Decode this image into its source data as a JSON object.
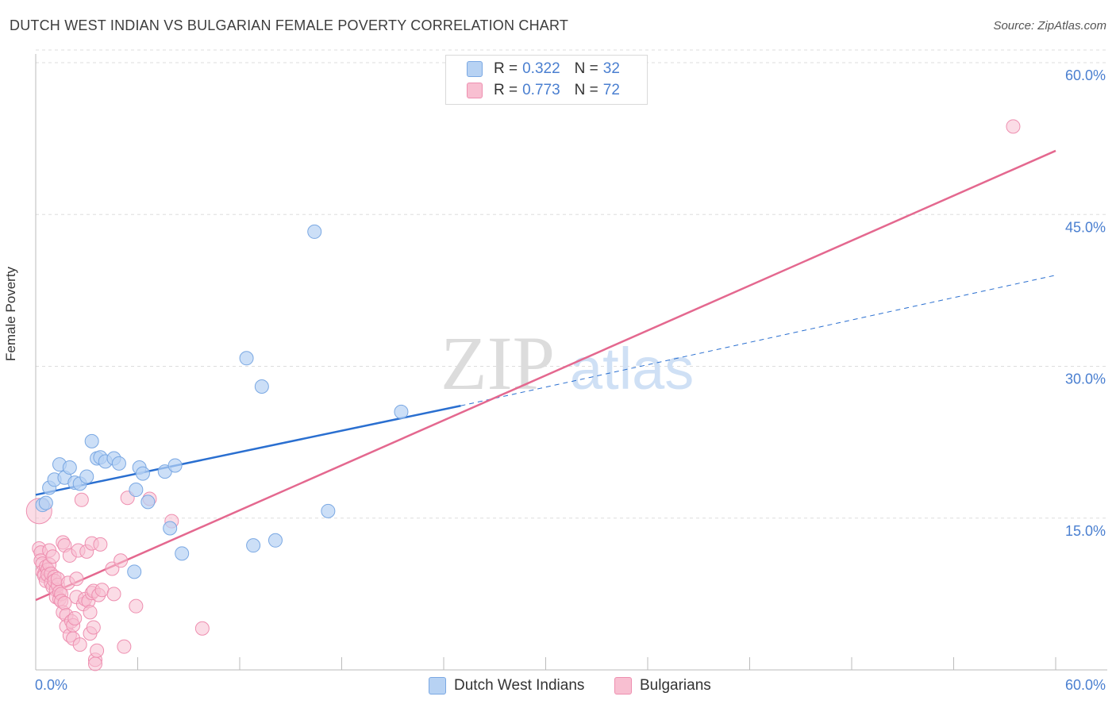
{
  "title": "DUTCH WEST INDIAN VS BULGARIAN FEMALE POVERTY CORRELATION CHART",
  "source": "Source: ZipAtlas.com",
  "watermark": {
    "zip": "ZIP",
    "atlas": "atlas"
  },
  "legend": {
    "rows": [
      {
        "r_label": "R =",
        "r_value": "0.322",
        "n_label": "N =",
        "n_value": "32"
      },
      {
        "r_label": "R =",
        "r_value": "0.773",
        "n_label": "N =",
        "n_value": "72"
      }
    ]
  },
  "colors": {
    "blue_fill": "#b7d2f3",
    "blue_stroke": "#7aa8e3",
    "blue_line": "#2a6fd0",
    "pink_fill": "#f8bfd1",
    "pink_stroke": "#ee8fb0",
    "pink_line": "#e4688f",
    "axis_text": "#4a7fd0",
    "grid": "#dddddd"
  },
  "chart_data": {
    "type": "scatter",
    "title": "DUTCH WEST INDIAN VS BULGARIAN FEMALE POVERTY CORRELATION CHART",
    "xlabel": "",
    "ylabel": "Female Poverty",
    "xlim": [
      0,
      60
    ],
    "ylim": [
      0,
      60
    ],
    "x_tick_labels": [
      "0.0%",
      "60.0%"
    ],
    "y_tick_labels": [
      "15.0%",
      "30.0%",
      "45.0%",
      "60.0%"
    ],
    "y_ticks": [
      15,
      30,
      45,
      60
    ],
    "series": [
      {
        "name": "Dutch West Indians",
        "r": 0.322,
        "n": 32,
        "trend": {
          "x0": 0,
          "y0": 17.3,
          "x1": 25.0,
          "y1": 26.1,
          "dash_x1": 60,
          "dash_y1": 39.0
        },
        "points": [
          [
            0.4,
            16.3
          ],
          [
            0.6,
            16.5
          ],
          [
            0.8,
            18.0
          ],
          [
            1.1,
            18.8
          ],
          [
            1.4,
            20.3
          ],
          [
            1.7,
            19.0
          ],
          [
            2.0,
            20.0
          ],
          [
            2.3,
            18.5
          ],
          [
            2.6,
            18.4
          ],
          [
            3.0,
            19.1
          ],
          [
            3.3,
            22.6
          ],
          [
            3.6,
            20.9
          ],
          [
            3.8,
            21.0
          ],
          [
            4.1,
            20.6
          ],
          [
            4.6,
            20.9
          ],
          [
            4.9,
            20.4
          ],
          [
            5.8,
            9.7
          ],
          [
            5.9,
            17.8
          ],
          [
            6.1,
            20.0
          ],
          [
            6.3,
            19.4
          ],
          [
            6.6,
            16.6
          ],
          [
            7.6,
            19.6
          ],
          [
            7.9,
            14.0
          ],
          [
            8.2,
            20.2
          ],
          [
            8.6,
            11.5
          ],
          [
            12.4,
            30.8
          ],
          [
            12.8,
            12.3
          ],
          [
            13.3,
            28.0
          ],
          [
            14.1,
            12.8
          ],
          [
            16.4,
            43.3
          ],
          [
            17.2,
            15.7
          ],
          [
            21.5,
            25.5
          ]
        ]
      },
      {
        "name": "Bulgarians",
        "r": 0.773,
        "n": 72,
        "trend": {
          "x0": 0,
          "y0": 6.9,
          "x1": 60,
          "y1": 51.3
        },
        "points": [
          [
            0.2,
            15.7
          ],
          [
            0.2,
            12.0
          ],
          [
            0.3,
            11.6
          ],
          [
            0.3,
            10.8
          ],
          [
            0.4,
            10.5
          ],
          [
            0.4,
            9.7
          ],
          [
            0.5,
            9.5
          ],
          [
            0.5,
            9.3
          ],
          [
            0.6,
            8.8
          ],
          [
            0.6,
            10.2
          ],
          [
            0.7,
            9.9
          ],
          [
            0.7,
            9.4
          ],
          [
            0.8,
            11.8
          ],
          [
            0.8,
            10.4
          ],
          [
            0.9,
            8.6
          ],
          [
            0.9,
            9.5
          ],
          [
            1.0,
            8.2
          ],
          [
            1.0,
            11.2
          ],
          [
            1.1,
            9.2
          ],
          [
            1.1,
            8.8
          ],
          [
            1.2,
            7.9
          ],
          [
            1.2,
            7.2
          ],
          [
            1.3,
            8.4
          ],
          [
            1.3,
            9.0
          ],
          [
            1.4,
            7.0
          ],
          [
            1.4,
            7.7
          ],
          [
            1.5,
            7.5
          ],
          [
            1.5,
            6.8
          ],
          [
            1.6,
            5.7
          ],
          [
            1.6,
            12.6
          ],
          [
            1.7,
            6.6
          ],
          [
            1.7,
            12.3
          ],
          [
            1.8,
            5.4
          ],
          [
            1.8,
            4.3
          ],
          [
            1.9,
            8.6
          ],
          [
            2.0,
            11.3
          ],
          [
            2.0,
            3.4
          ],
          [
            2.1,
            4.8
          ],
          [
            2.2,
            4.4
          ],
          [
            2.2,
            3.1
          ],
          [
            2.3,
            5.1
          ],
          [
            2.4,
            9.0
          ],
          [
            2.4,
            7.2
          ],
          [
            2.5,
            11.8
          ],
          [
            2.6,
            2.5
          ],
          [
            2.7,
            16.8
          ],
          [
            2.8,
            6.5
          ],
          [
            2.9,
            7.0
          ],
          [
            3.0,
            11.7
          ],
          [
            3.1,
            6.8
          ],
          [
            3.2,
            5.7
          ],
          [
            3.2,
            3.6
          ],
          [
            3.3,
            12.5
          ],
          [
            3.3,
            7.6
          ],
          [
            3.4,
            7.8
          ],
          [
            3.4,
            4.2
          ],
          [
            3.5,
            1.0
          ],
          [
            3.5,
            0.6
          ],
          [
            3.6,
            1.9
          ],
          [
            3.7,
            7.4
          ],
          [
            3.8,
            12.4
          ],
          [
            3.9,
            7.9
          ],
          [
            4.5,
            10.0
          ],
          [
            4.6,
            7.5
          ],
          [
            5.0,
            10.8
          ],
          [
            5.2,
            2.3
          ],
          [
            5.4,
            17.0
          ],
          [
            5.9,
            6.3
          ],
          [
            6.7,
            16.9
          ],
          [
            8.0,
            14.7
          ],
          [
            9.8,
            4.1
          ],
          [
            57.5,
            53.7
          ]
        ]
      }
    ]
  }
}
